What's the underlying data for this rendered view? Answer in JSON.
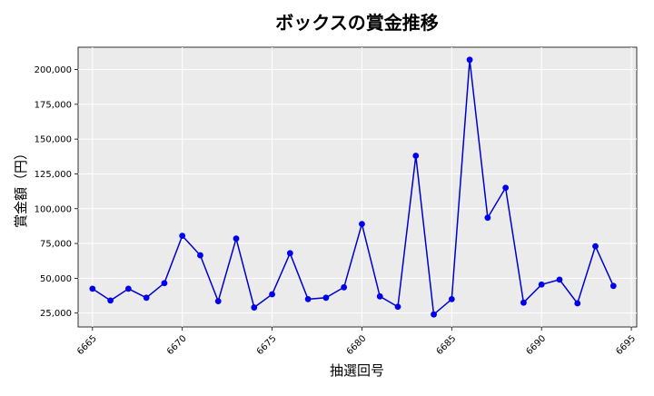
{
  "chart_data": {
    "type": "line",
    "title": "ボックスの賞金推移",
    "xlabel": "抽選回号",
    "ylabel": "賞金額（円）",
    "xlim": [
      6664.2,
      6695.3
    ],
    "ylim": [
      15000,
      216000
    ],
    "x_ticks": [
      6665,
      6670,
      6675,
      6680,
      6685,
      6690,
      6695
    ],
    "y_ticks": [
      25000,
      50000,
      75000,
      100000,
      125000,
      150000,
      175000,
      200000
    ],
    "y_tick_labels": [
      "25,000",
      "50,000",
      "75,000",
      "100,000",
      "125,000",
      "150,000",
      "175,000",
      "200,000"
    ],
    "grid": true,
    "series": [
      {
        "color": "#0000cc",
        "marker_color": "#0000ee",
        "x": [
          6665,
          6666,
          6667,
          6668,
          6669,
          6670,
          6671,
          6672,
          6673,
          6674,
          6675,
          6676,
          6677,
          6678,
          6679,
          6680,
          6681,
          6682,
          6683,
          6684,
          6685,
          6686,
          6687,
          6688,
          6689,
          6690,
          6691,
          6692,
          6693,
          6694
        ],
        "values": [
          42500,
          34000,
          42500,
          36000,
          46500,
          80500,
          66500,
          33500,
          78500,
          29000,
          38500,
          68000,
          35000,
          36000,
          43500,
          89000,
          37000,
          29500,
          138000,
          24000,
          35000,
          207000,
          93500,
          115000,
          32500,
          45500,
          49000,
          32000,
          73000,
          44500
        ]
      }
    ]
  }
}
